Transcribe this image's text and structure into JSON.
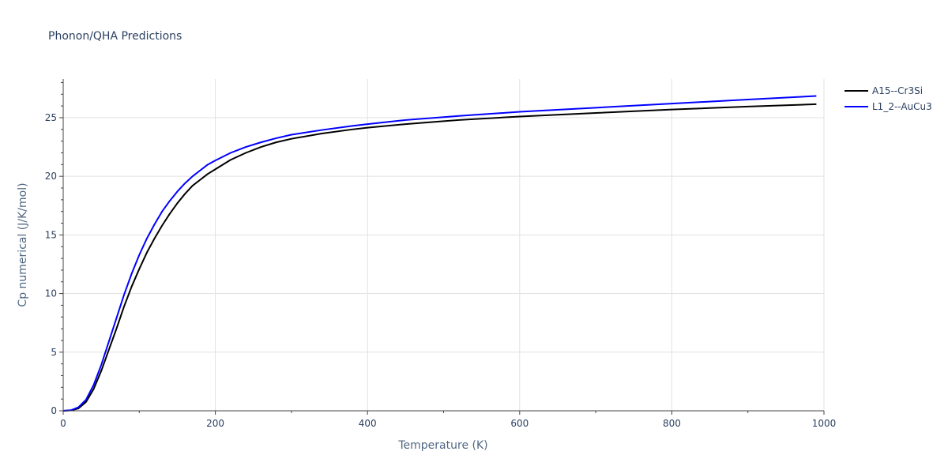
{
  "chart_data": {
    "type": "line",
    "title": "Phonon/QHA Predictions",
    "xlabel": "Temperature (K)",
    "ylabel": "Cp numerical (J/K/mol)",
    "xlim": [
      0,
      1000
    ],
    "ylim": [
      0,
      28.3
    ],
    "xticks": [
      0,
      200,
      400,
      600,
      800,
      1000
    ],
    "yticks": [
      0,
      5,
      10,
      15,
      20,
      25
    ],
    "grid": true,
    "legend_position": "top-right",
    "series": [
      {
        "name": "A15--Cr3Si",
        "color": "#000000",
        "x": [
          0,
          10,
          20,
          30,
          40,
          50,
          60,
          70,
          80,
          90,
          100,
          110,
          120,
          130,
          140,
          150,
          160,
          170,
          180,
          190,
          200,
          220,
          240,
          260,
          280,
          300,
          340,
          380,
          400,
          450,
          500,
          520,
          600,
          700,
          800,
          900,
          990
        ],
        "y": [
          0,
          0.03,
          0.2,
          0.75,
          1.85,
          3.4,
          5.2,
          7.0,
          8.9,
          10.6,
          12.1,
          13.5,
          14.7,
          15.8,
          16.8,
          17.7,
          18.5,
          19.2,
          19.7,
          20.2,
          20.6,
          21.4,
          22.0,
          22.5,
          22.9,
          23.2,
          23.65,
          24.0,
          24.15,
          24.45,
          24.7,
          24.8,
          25.1,
          25.4,
          25.7,
          25.95,
          26.15
        ]
      },
      {
        "name": "L1_2--AuCu3",
        "color": "#0000ff",
        "x": [
          0,
          10,
          20,
          30,
          40,
          50,
          60,
          70,
          80,
          90,
          100,
          110,
          120,
          130,
          140,
          150,
          160,
          170,
          180,
          190,
          200,
          220,
          240,
          260,
          280,
          300,
          340,
          380,
          400,
          450,
          500,
          520,
          600,
          700,
          800,
          900,
          990
        ],
        "y": [
          0,
          0.05,
          0.3,
          0.95,
          2.2,
          3.9,
          5.9,
          7.9,
          9.9,
          11.7,
          13.3,
          14.7,
          15.9,
          17.0,
          17.9,
          18.7,
          19.4,
          20.0,
          20.5,
          21.0,
          21.35,
          22.0,
          22.5,
          22.9,
          23.25,
          23.55,
          23.95,
          24.3,
          24.45,
          24.8,
          25.05,
          25.15,
          25.5,
          25.85,
          26.2,
          26.55,
          26.85
        ]
      }
    ]
  }
}
